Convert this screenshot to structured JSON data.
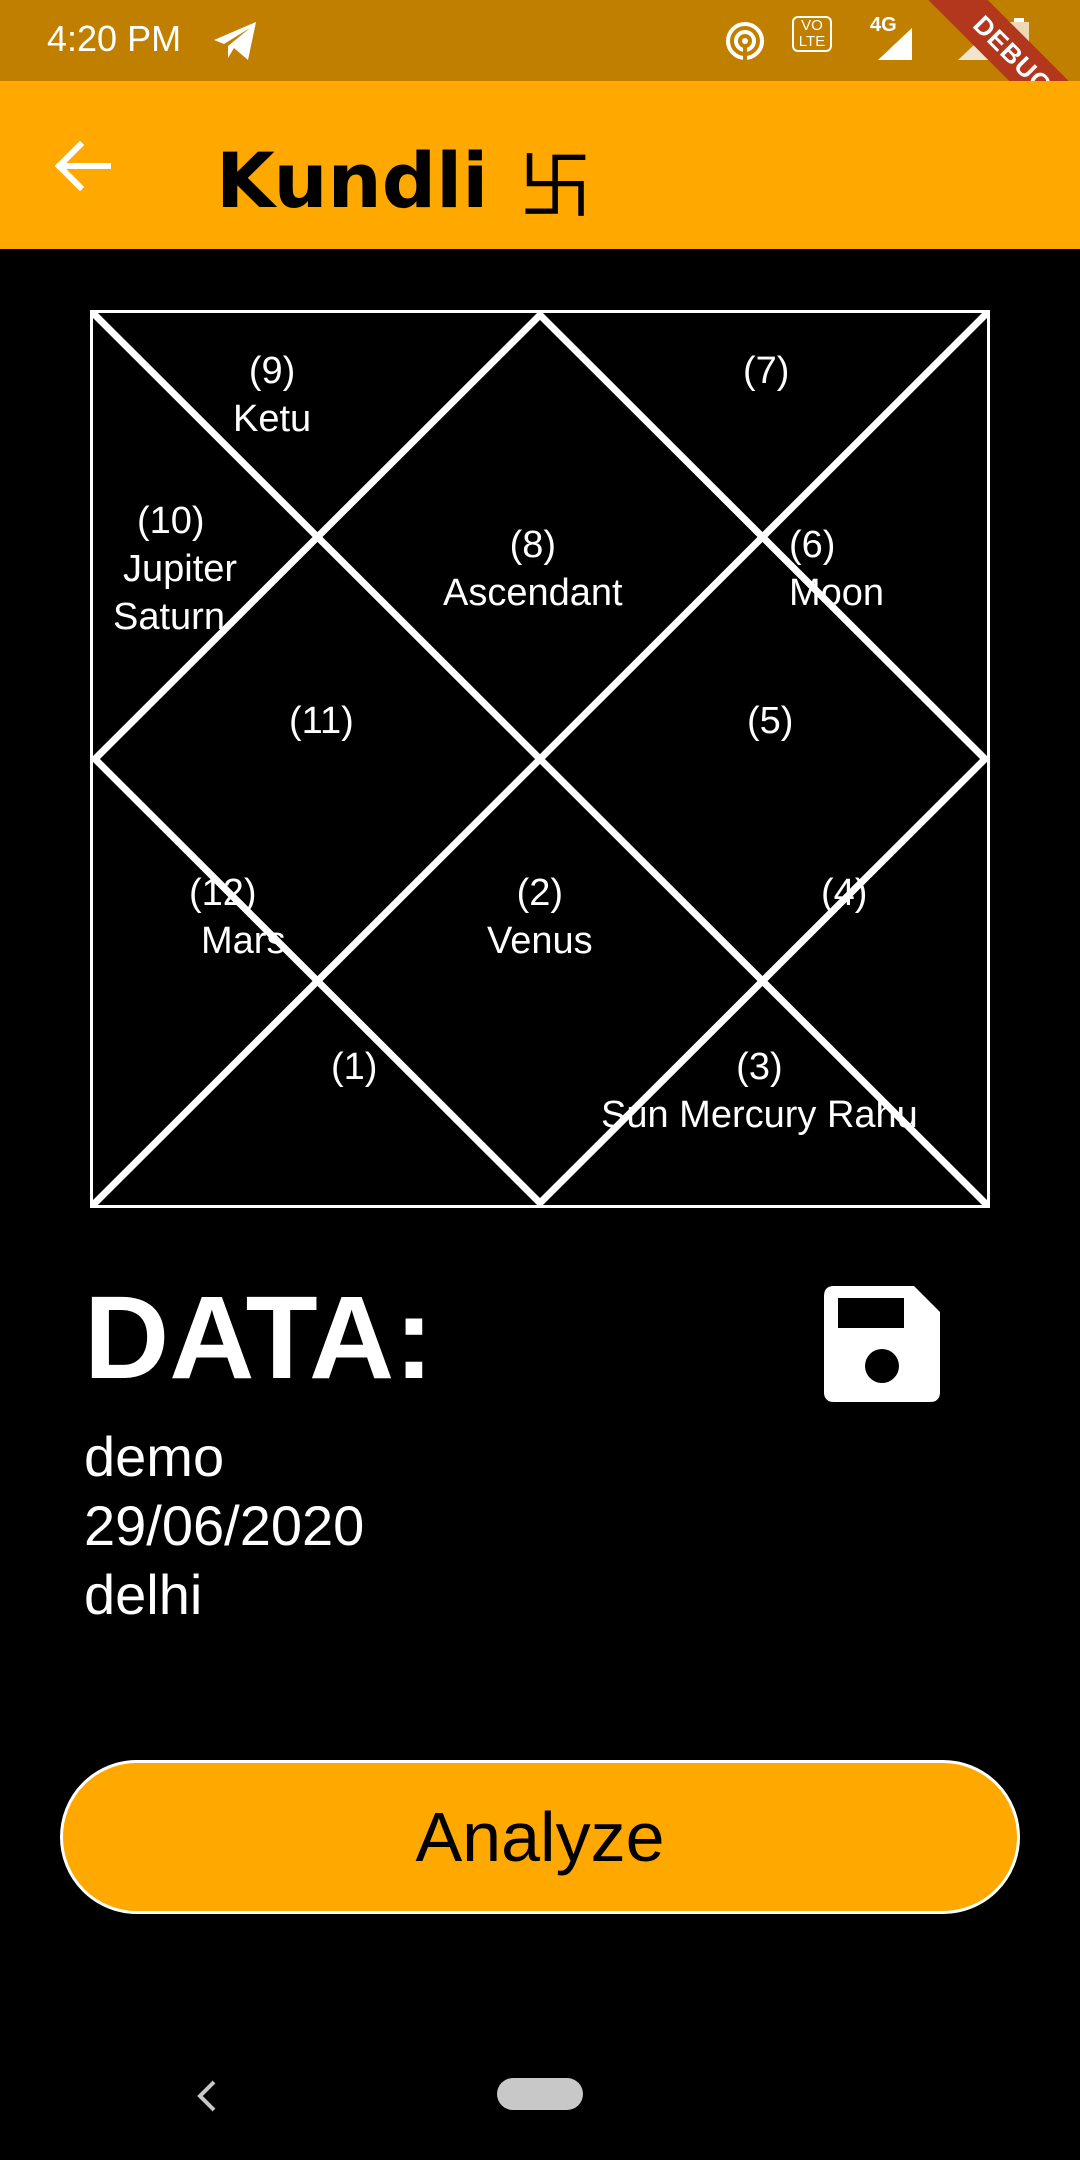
{
  "status_bar": {
    "time": "4:20 PM",
    "network": "4G",
    "volte": "VO LTE",
    "debug_label": "DEBUG"
  },
  "app_bar": {
    "title": "Kundli",
    "title_symbol": "卐",
    "bg_color": "#ffa800"
  },
  "kundli": {
    "houses": [
      {
        "number": "(9)",
        "planets": [
          "Ketu"
        ]
      },
      {
        "number": "(7)",
        "planets": []
      },
      {
        "number": "(10)",
        "planets": [
          "Jupiter",
          "Saturn"
        ]
      },
      {
        "number": "(8)",
        "planets": [
          "Ascendant"
        ]
      },
      {
        "number": "(6)",
        "planets": [
          "Moon"
        ]
      },
      {
        "number": "(11)",
        "planets": []
      },
      {
        "number": "(5)",
        "planets": []
      },
      {
        "number": "(12)",
        "planets": [
          "Mars"
        ]
      },
      {
        "number": "(2)",
        "planets": [
          "Venus"
        ]
      },
      {
        "number": "(4)",
        "planets": []
      },
      {
        "number": "(1)",
        "planets": []
      },
      {
        "number": "(3)",
        "planets": [
          "Sun Mercury Rahu"
        ]
      }
    ]
  },
  "data_section": {
    "heading": "DATA:",
    "name": "demo",
    "date": "29/06/2020",
    "place": "delhi"
  },
  "actions": {
    "analyze_label": "Analyze"
  },
  "icons": {
    "back": "arrow-left-icon",
    "save": "floppy-disk-icon",
    "telegram": "telegram-icon",
    "hotspot": "hotspot-icon",
    "signal": "signal-icon",
    "battery": "battery-icon"
  }
}
